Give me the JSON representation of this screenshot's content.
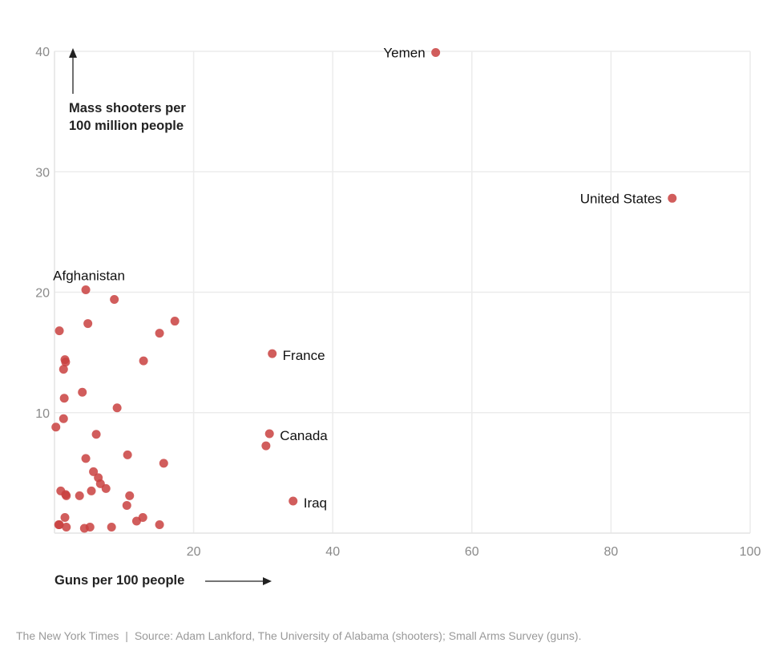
{
  "chart_data": {
    "type": "scatter",
    "title": "",
    "xlabel": "Guns per 100 people",
    "ylabel": "Mass shooters per 100 million people",
    "xlim": [
      0,
      100
    ],
    "ylim": [
      0,
      40
    ],
    "xticks": [
      20,
      40,
      60,
      80,
      100
    ],
    "yticks": [
      10,
      20,
      30,
      40
    ],
    "grid": true,
    "color": "#c94140",
    "points": [
      {
        "x": 54.8,
        "y": 39.9,
        "label": "Yemen"
      },
      {
        "x": 88.8,
        "y": 27.8,
        "label": "United States"
      },
      {
        "x": 31.3,
        "y": 14.9,
        "label": "France"
      },
      {
        "x": 30.9,
        "y": 8.25,
        "label": "Canada"
      },
      {
        "x": 34.3,
        "y": 2.66,
        "label": "Iraq"
      },
      {
        "x": 4.5,
        "y": 20.2,
        "label": "Afghanistan"
      },
      {
        "x": 30.4,
        "y": 7.25
      },
      {
        "x": 8.6,
        "y": 19.4
      },
      {
        "x": 17.3,
        "y": 17.6
      },
      {
        "x": 4.8,
        "y": 17.4
      },
      {
        "x": 0.7,
        "y": 16.8
      },
      {
        "x": 15.1,
        "y": 16.6
      },
      {
        "x": 1.5,
        "y": 14.4
      },
      {
        "x": 1.6,
        "y": 14.2
      },
      {
        "x": 12.8,
        "y": 14.3
      },
      {
        "x": 1.3,
        "y": 13.6
      },
      {
        "x": 4.0,
        "y": 11.7
      },
      {
        "x": 1.4,
        "y": 11.2
      },
      {
        "x": 9.0,
        "y": 10.4
      },
      {
        "x": 1.3,
        "y": 9.5
      },
      {
        "x": 0.2,
        "y": 8.8
      },
      {
        "x": 6.0,
        "y": 8.2
      },
      {
        "x": 4.5,
        "y": 6.2
      },
      {
        "x": 10.5,
        "y": 6.5
      },
      {
        "x": 15.7,
        "y": 5.8
      },
      {
        "x": 5.6,
        "y": 5.1
      },
      {
        "x": 6.3,
        "y": 4.6
      },
      {
        "x": 6.6,
        "y": 4.1
      },
      {
        "x": 7.4,
        "y": 3.7
      },
      {
        "x": 5.3,
        "y": 3.5
      },
      {
        "x": 0.9,
        "y": 3.5
      },
      {
        "x": 1.6,
        "y": 3.2
      },
      {
        "x": 1.7,
        "y": 3.1
      },
      {
        "x": 3.6,
        "y": 3.1
      },
      {
        "x": 10.8,
        "y": 3.1
      },
      {
        "x": 10.4,
        "y": 2.3
      },
      {
        "x": 1.5,
        "y": 1.3
      },
      {
        "x": 12.7,
        "y": 1.3
      },
      {
        "x": 11.8,
        "y": 1.0
      },
      {
        "x": 15.1,
        "y": 0.7
      },
      {
        "x": 0.7,
        "y": 0.7
      },
      {
        "x": 0.6,
        "y": 0.7
      },
      {
        "x": 1.7,
        "y": 0.5
      },
      {
        "x": 4.3,
        "y": 0.4
      },
      {
        "x": 5.1,
        "y": 0.5
      },
      {
        "x": 8.2,
        "y": 0.5
      }
    ]
  },
  "footer": {
    "credit": "The New York Times",
    "separator": "|",
    "source": "Source: Adam Lankford, The University of Alabama (shooters); Small Arms Survey (guns)."
  }
}
